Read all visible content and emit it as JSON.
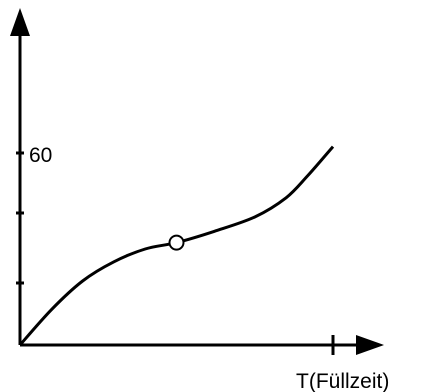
{
  "chart_data": {
    "type": "line",
    "title": "",
    "xlabel": "T(Füllzeit)",
    "ylabel": "",
    "y_tick_labels": [
      "60"
    ],
    "grid": false,
    "legend": "none",
    "series": [
      {
        "points": [
          [
            0,
            0
          ],
          [
            0.1,
            11
          ],
          [
            0.2,
            20
          ],
          [
            0.3,
            26
          ],
          [
            0.4,
            30
          ],
          [
            0.5,
            32
          ],
          [
            0.62,
            35.5
          ],
          [
            0.75,
            40
          ],
          [
            0.85,
            46
          ],
          [
            0.92,
            53
          ],
          [
            1,
            62
          ]
        ]
      }
    ],
    "marker": {
      "x": 0.5,
      "y": 32,
      "shape": "open-circle"
    },
    "colors": {
      "line": "#000000"
    }
  }
}
